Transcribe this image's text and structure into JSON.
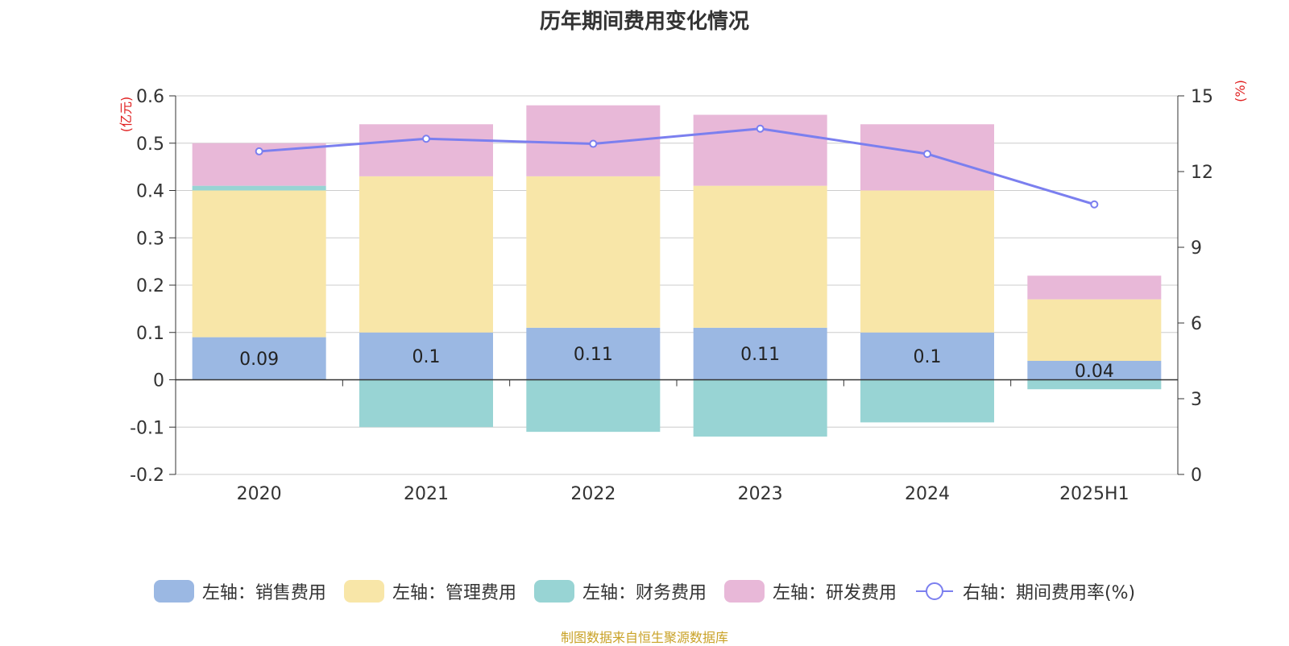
{
  "chart_data": {
    "type": "bar",
    "title": "历年期间费用变化情况",
    "categories": [
      "2020",
      "2021",
      "2022",
      "2023",
      "2024",
      "2025H1"
    ],
    "left_axis": {
      "unit_label": "(亿元)",
      "ylim": [
        -0.2,
        0.6
      ],
      "ticks": [
        "0.6",
        "0.5",
        "0.4",
        "0.3",
        "0.2",
        "0.1",
        "0",
        "-0.1",
        "-0.2"
      ],
      "tick_values": [
        0.6,
        0.5,
        0.4,
        0.3,
        0.2,
        0.1,
        0,
        -0.1,
        -0.2
      ]
    },
    "right_axis": {
      "unit_label": "(%)",
      "ylim": [
        0,
        15
      ],
      "ticks": [
        "15",
        "12",
        "9",
        "6",
        "3",
        "0"
      ],
      "tick_values": [
        15,
        12,
        9,
        6,
        3,
        0
      ]
    },
    "series": [
      {
        "name": "左轴：销售费用",
        "color": "#9bb8e3",
        "values": [
          0.09,
          0.1,
          0.11,
          0.11,
          0.1,
          0.04
        ],
        "labels": [
          "0.09",
          "0.1",
          "0.11",
          "0.11",
          "0.1",
          "0.04"
        ]
      },
      {
        "name": "左轴：管理费用",
        "color": "#f8e6a8",
        "values": [
          0.31,
          0.33,
          0.32,
          0.3,
          0.3,
          0.13
        ]
      },
      {
        "name": "左轴：财务费用",
        "color": "#98d4d4",
        "values": [
          0.01,
          -0.1,
          -0.11,
          -0.12,
          -0.09,
          -0.02
        ]
      },
      {
        "name": "左轴：研发费用",
        "color": "#e8b8d8",
        "values": [
          0.09,
          0.11,
          0.15,
          0.15,
          0.14,
          0.05
        ]
      }
    ],
    "line_series": {
      "name": "右轴：期间费用率(%)",
      "color": "#7b7fef",
      "values": [
        12.8,
        13.3,
        13.1,
        13.7,
        12.7,
        10.7
      ]
    },
    "grid": true,
    "legend_position": "bottom"
  },
  "footer": "制图数据来自恒生聚源数据库",
  "axis_label_color": "#e02020"
}
